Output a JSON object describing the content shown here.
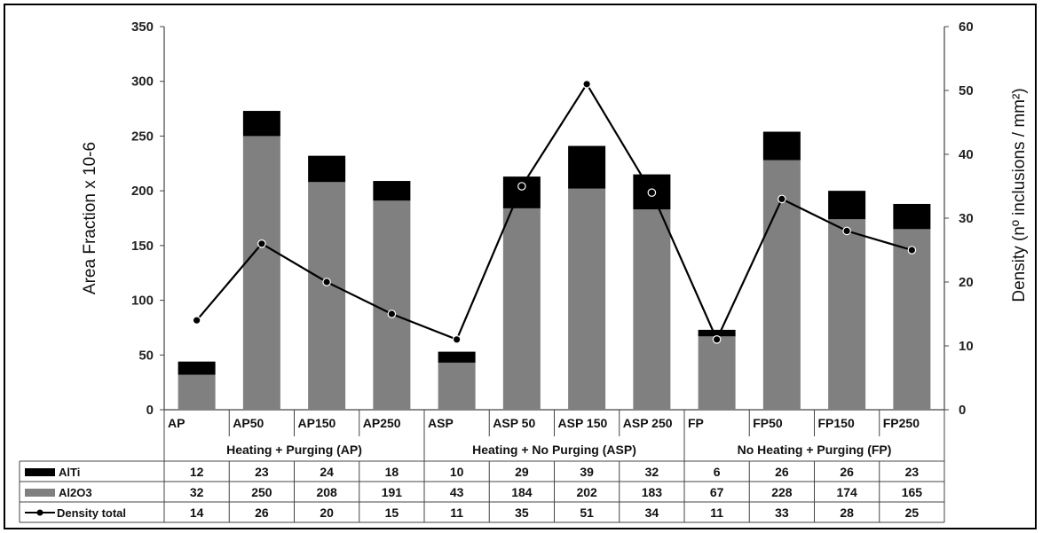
{
  "chart_data": {
    "type": "bar",
    "categories": [
      "AP",
      "AP50",
      "AP150",
      "AP250",
      "ASP",
      "ASP 50",
      "ASP 150",
      "ASP 250",
      "FP",
      "FP50",
      "FP150",
      "FP250"
    ],
    "groups": [
      {
        "label": "Heating + Purging (AP)",
        "categories": [
          "AP",
          "AP50",
          "AP150",
          "AP250"
        ]
      },
      {
        "label": "Heating + No Purging (ASP)",
        "categories": [
          "ASP",
          "ASP 50",
          "ASP 150",
          "ASP 250"
        ]
      },
      {
        "label": "No Heating + Purging (FP)",
        "categories": [
          "FP",
          "FP50",
          "FP150",
          "FP250"
        ]
      }
    ],
    "series": [
      {
        "name": "Al2O3",
        "type": "bar",
        "stack": true,
        "axis": "left",
        "color": "#808080",
        "values": [
          32,
          250,
          208,
          191,
          43,
          184,
          202,
          183,
          67,
          228,
          174,
          165
        ]
      },
      {
        "name": "AlTi",
        "type": "bar",
        "stack": true,
        "axis": "left",
        "color": "#000000",
        "values": [
          12,
          23,
          24,
          18,
          10,
          29,
          39,
          32,
          6,
          26,
          26,
          23
        ]
      },
      {
        "name": "Density total",
        "type": "line",
        "axis": "right",
        "color": "#000000",
        "values": [
          14,
          26,
          20,
          15,
          11,
          35,
          51,
          34,
          11,
          33,
          28,
          25
        ]
      }
    ],
    "ylabel": "Area Fraction  x 10-6",
    "ylim": [
      0,
      350
    ],
    "yticks": [
      "0",
      "50",
      "100",
      "150",
      "200",
      "250",
      "300",
      "350"
    ],
    "y2label": "Density (nº inclusions / mm²)",
    "y2lim": [
      0,
      60
    ],
    "y2ticks": [
      "0",
      "10",
      "20",
      "30",
      "40",
      "50",
      "60"
    ],
    "grid": false,
    "legend": "data table below chart",
    "table_rows": [
      {
        "label": "AlTi",
        "values": [
          "12",
          "23",
          "24",
          "18",
          "10",
          "29",
          "39",
          "32",
          "6",
          "26",
          "26",
          "23"
        ]
      },
      {
        "label": "Al2O3",
        "values": [
          "32",
          "250",
          "208",
          "191",
          "43",
          "184",
          "202",
          "183",
          "67",
          "228",
          "174",
          "165"
        ]
      },
      {
        "label": "Density total",
        "values": [
          "14",
          "26",
          "20",
          "15",
          "11",
          "35",
          "51",
          "34",
          "11",
          "33",
          "28",
          "25"
        ]
      }
    ]
  }
}
